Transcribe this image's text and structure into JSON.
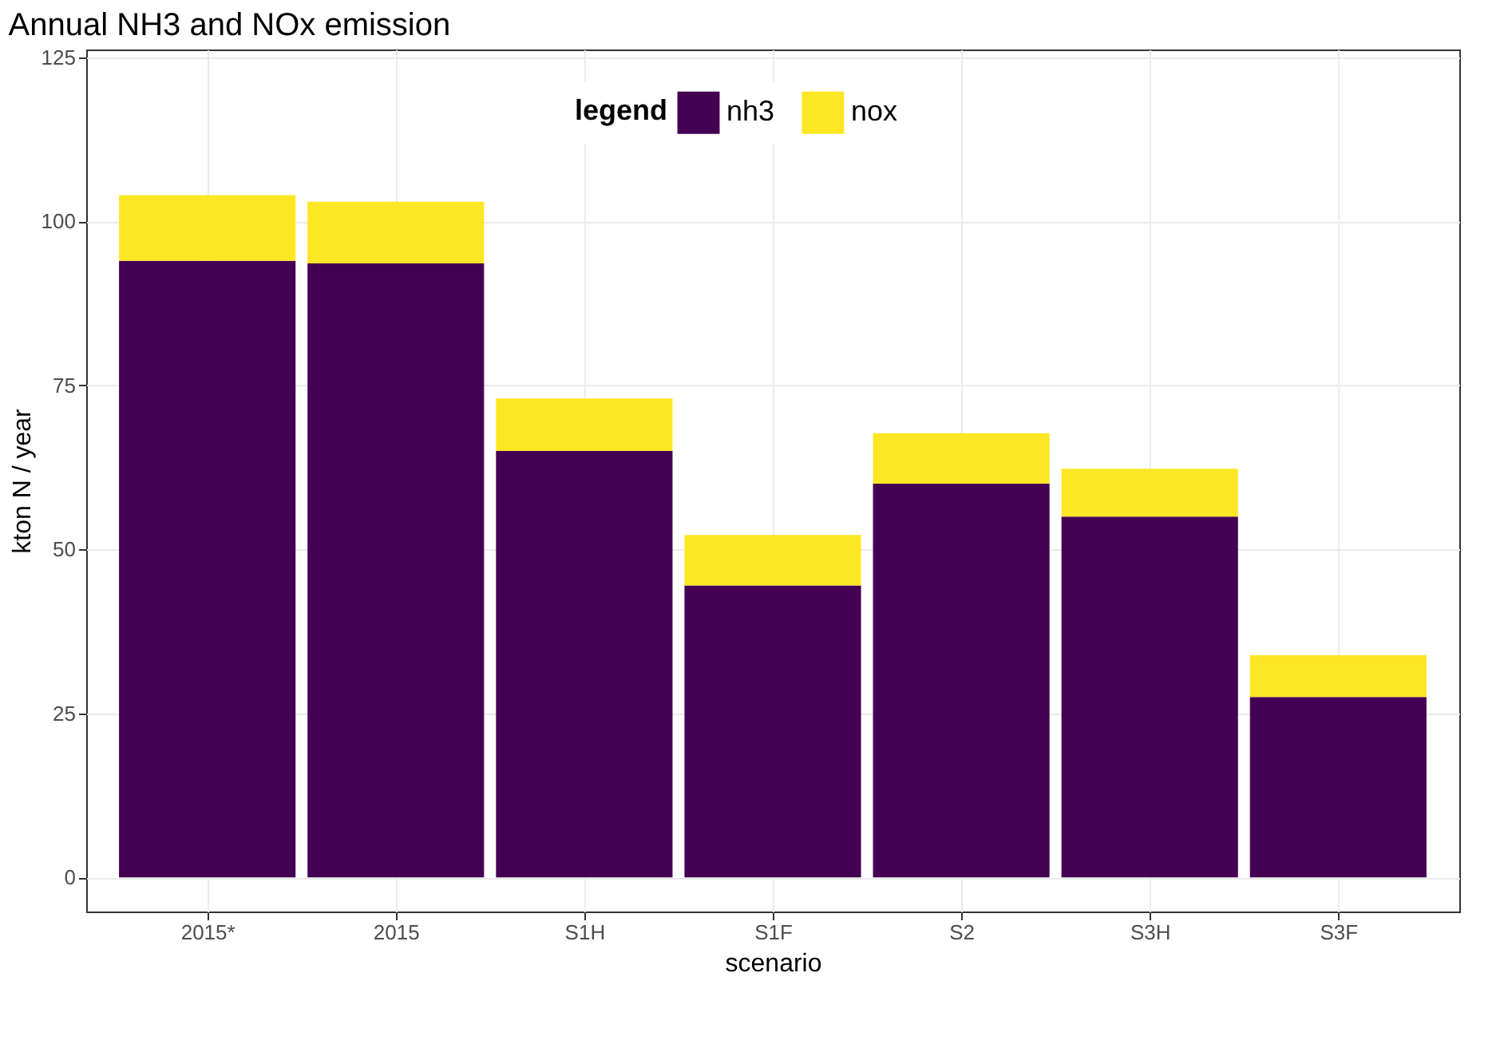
{
  "chart_data": {
    "type": "bar",
    "title": "Annual NH3 and NOx emission",
    "xlabel": "scenario",
    "ylabel": "kton N / year",
    "legend_title": "legend",
    "categories": [
      "2015*",
      "2015",
      "S1H",
      "S1F",
      "S2",
      "S3H",
      "S3F"
    ],
    "stacked": true,
    "series": [
      {
        "name": "nh3",
        "color": "#440154",
        "values": [
          94,
          93.6,
          65,
          44.5,
          60,
          55,
          27.5
        ]
      },
      {
        "name": "nox",
        "color": "#fde725",
        "values": [
          10,
          9.4,
          8,
          7.7,
          7.7,
          7.3,
          6.4
        ]
      }
    ],
    "ylim": [
      -5.2,
      126.2
    ],
    "yticks": [
      0,
      25,
      50,
      75,
      100,
      125
    ],
    "grid": true,
    "legend": "top"
  }
}
